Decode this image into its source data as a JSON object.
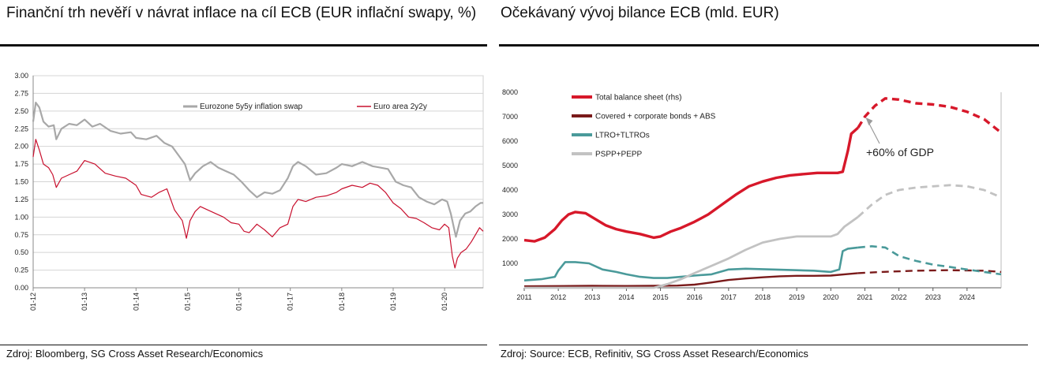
{
  "left": {
    "title": "Finanční trh nevěří v návrat inflace na cíl ECB (EUR inflační swapy, %)",
    "source": "Zdroj: Bloomberg, SG Cross Asset Research/Economics"
  },
  "right": {
    "title": "Očekávaný vývoj bilance ECB (mld. EUR)",
    "source": "Zdroj: Source: ECB, Refinitiv, SG Cross Asset Research/Economics"
  },
  "chart_data": [
    {
      "type": "line",
      "title": "Finanční trh nevěří v návrat inflace na cíl ECB (EUR inflační swapy, %)",
      "x_ticks": [
        "01-12",
        "01-13",
        "01-14",
        "01-15",
        "01-16",
        "01-17",
        "01-18",
        "01-19",
        "01-20"
      ],
      "y_ticks": [
        "0.00",
        "0.25",
        "0.50",
        "0.75",
        "1.00",
        "1.25",
        "1.50",
        "1.75",
        "2.00",
        "2.25",
        "2.50",
        "2.75",
        "3.00"
      ],
      "ylim": [
        0,
        3
      ],
      "xlim": [
        2012.0,
        2020.75
      ],
      "grid": true,
      "legend": "top",
      "series": [
        {
          "name": "Eurozone 5y5y inflation swap",
          "color": "#a8a8a8",
          "x": [
            2012.0,
            2012.05,
            2012.12,
            2012.2,
            2012.3,
            2012.4,
            2012.45,
            2012.55,
            2012.7,
            2012.85,
            2013.0,
            2013.15,
            2013.3,
            2013.5,
            2013.7,
            2013.9,
            2014.0,
            2014.2,
            2014.4,
            2014.55,
            2014.7,
            2014.85,
            2014.95,
            2015.05,
            2015.15,
            2015.3,
            2015.45,
            2015.6,
            2015.75,
            2015.9,
            2016.05,
            2016.2,
            2016.35,
            2016.5,
            2016.65,
            2016.8,
            2016.95,
            2017.05,
            2017.15,
            2017.3,
            2017.5,
            2017.7,
            2017.9,
            2018.0,
            2018.2,
            2018.4,
            2018.6,
            2018.75,
            2018.9,
            2019.05,
            2019.2,
            2019.35,
            2019.5,
            2019.65,
            2019.8,
            2019.95,
            2020.05,
            2020.12,
            2020.18,
            2020.22,
            2020.3,
            2020.4,
            2020.5,
            2020.6,
            2020.7,
            2020.75
          ],
          "y": [
            2.35,
            2.62,
            2.55,
            2.35,
            2.28,
            2.3,
            2.1,
            2.25,
            2.32,
            2.3,
            2.38,
            2.28,
            2.32,
            2.22,
            2.18,
            2.2,
            2.12,
            2.1,
            2.15,
            2.05,
            2.0,
            1.85,
            1.75,
            1.52,
            1.62,
            1.72,
            1.78,
            1.7,
            1.65,
            1.6,
            1.5,
            1.38,
            1.28,
            1.35,
            1.33,
            1.38,
            1.55,
            1.72,
            1.78,
            1.72,
            1.6,
            1.62,
            1.7,
            1.75,
            1.72,
            1.78,
            1.72,
            1.7,
            1.68,
            1.5,
            1.45,
            1.42,
            1.28,
            1.22,
            1.18,
            1.25,
            1.22,
            1.05,
            0.85,
            0.72,
            0.95,
            1.05,
            1.08,
            1.15,
            1.2,
            1.2
          ]
        },
        {
          "name": "Euro area 2y2y",
          "color": "#c8102e",
          "x": [
            2012.0,
            2012.05,
            2012.12,
            2012.2,
            2012.3,
            2012.38,
            2012.45,
            2012.55,
            2012.7,
            2012.85,
            2013.0,
            2013.2,
            2013.4,
            2013.6,
            2013.8,
            2014.0,
            2014.1,
            2014.3,
            2014.45,
            2014.6,
            2014.75,
            2014.9,
            2014.98,
            2015.05,
            2015.15,
            2015.25,
            2015.4,
            2015.55,
            2015.7,
            2015.85,
            2016.0,
            2016.1,
            2016.2,
            2016.35,
            2016.5,
            2016.65,
            2016.8,
            2016.95,
            2017.05,
            2017.15,
            2017.3,
            2017.5,
            2017.7,
            2017.9,
            2018.0,
            2018.2,
            2018.4,
            2018.55,
            2018.7,
            2018.85,
            2019.0,
            2019.15,
            2019.3,
            2019.45,
            2019.6,
            2019.75,
            2019.9,
            2020.0,
            2020.08,
            2020.15,
            2020.2,
            2020.25,
            2020.32,
            2020.42,
            2020.52,
            2020.6,
            2020.68,
            2020.75
          ],
          "y": [
            1.85,
            2.1,
            1.95,
            1.75,
            1.7,
            1.6,
            1.42,
            1.55,
            1.6,
            1.65,
            1.8,
            1.75,
            1.62,
            1.58,
            1.55,
            1.45,
            1.32,
            1.28,
            1.35,
            1.4,
            1.1,
            0.95,
            0.7,
            0.95,
            1.08,
            1.15,
            1.1,
            1.05,
            1.0,
            0.92,
            0.9,
            0.8,
            0.78,
            0.9,
            0.82,
            0.72,
            0.85,
            0.9,
            1.15,
            1.25,
            1.22,
            1.28,
            1.3,
            1.35,
            1.4,
            1.45,
            1.42,
            1.48,
            1.45,
            1.35,
            1.2,
            1.12,
            1.0,
            0.98,
            0.92,
            0.85,
            0.82,
            0.9,
            0.85,
            0.45,
            0.28,
            0.42,
            0.5,
            0.55,
            0.65,
            0.75,
            0.85,
            0.8
          ]
        }
      ]
    },
    {
      "type": "line",
      "title": "Očekávaný vývoj bilance ECB (mld. EUR)",
      "x_ticks": [
        "2011",
        "2012",
        "2013",
        "2014",
        "2015",
        "2016",
        "2017",
        "2018",
        "2019",
        "2020",
        "2021",
        "2022",
        "2023",
        "2024"
      ],
      "y_ticks": [
        "1000",
        "2000",
        "3000",
        "4000",
        "5000",
        "6000",
        "7000",
        "8000"
      ],
      "ylim": [
        0,
        8000
      ],
      "xlim": [
        2011.0,
        2025.0
      ],
      "grid": false,
      "legend": "top-left",
      "forecast_from": 2020.8,
      "annotation": "+60% of GDP",
      "series": [
        {
          "name": "Total balance sheet (rhs)",
          "color": "#d7182a",
          "x": [
            2011.0,
            2011.3,
            2011.6,
            2011.9,
            2012.1,
            2012.3,
            2012.5,
            2012.8,
            2013.1,
            2013.4,
            2013.7,
            2014.0,
            2014.4,
            2014.8,
            2015.0,
            2015.3,
            2015.6,
            2016.0,
            2016.4,
            2016.8,
            2017.2,
            2017.6,
            2018.0,
            2018.4,
            2018.8,
            2019.2,
            2019.6,
            2020.0,
            2020.2,
            2020.35,
            2020.5,
            2020.6,
            2020.8,
            2021.0,
            2021.3,
            2021.6,
            2022.0,
            2022.5,
            2023.0,
            2023.5,
            2024.0,
            2024.5,
            2025.0
          ],
          "y": [
            1950,
            1900,
            2050,
            2400,
            2750,
            3000,
            3100,
            3050,
            2800,
            2550,
            2400,
            2300,
            2200,
            2050,
            2100,
            2300,
            2450,
            2700,
            3000,
            3400,
            3800,
            4150,
            4350,
            4500,
            4600,
            4650,
            4700,
            4700,
            4700,
            4750,
            5600,
            6300,
            6550,
            7000,
            7450,
            7750,
            7700,
            7550,
            7500,
            7400,
            7200,
            6900,
            6350
          ]
        },
        {
          "name": "Covered + corporate bonds + ABS",
          "color": "#7a1a1a",
          "x": [
            2011.0,
            2012.0,
            2013.0,
            2014.0,
            2014.8,
            2015.5,
            2016.0,
            2016.5,
            2017.0,
            2017.5,
            2018.0,
            2018.5,
            2019.0,
            2019.5,
            2020.0,
            2020.5,
            2020.8,
            2021.5,
            2022.5,
            2023.5,
            2024.5,
            2025.0
          ],
          "y": [
            60,
            70,
            80,
            75,
            80,
            90,
            130,
            220,
            320,
            380,
            430,
            470,
            490,
            490,
            500,
            560,
            600,
            650,
            700,
            720,
            700,
            650
          ]
        },
        {
          "name": "LTRO+TLTROs",
          "color": "#4a9a9a",
          "x": [
            2011.0,
            2011.5,
            2011.9,
            2012.0,
            2012.2,
            2012.5,
            2012.9,
            2013.3,
            2013.7,
            2014.0,
            2014.4,
            2014.8,
            2015.2,
            2015.6,
            2016.0,
            2016.5,
            2017.0,
            2017.5,
            2018.0,
            2018.5,
            2019.0,
            2019.5,
            2020.0,
            2020.25,
            2020.35,
            2020.5,
            2020.8,
            2021.2,
            2021.6,
            2022.0,
            2022.5,
            2023.0,
            2023.5,
            2024.0,
            2024.5,
            2025.0
          ],
          "y": [
            300,
            350,
            450,
            700,
            1050,
            1050,
            1000,
            750,
            650,
            550,
            450,
            400,
            400,
            450,
            500,
            550,
            750,
            780,
            760,
            740,
            720,
            700,
            650,
            750,
            1500,
            1600,
            1650,
            1700,
            1650,
            1300,
            1100,
            950,
            850,
            750,
            650,
            550
          ]
        },
        {
          "name": "PSPP+PEPP",
          "color": "#c2c2c2",
          "x": [
            2011.0,
            2014.8,
            2015.2,
            2015.6,
            2016.0,
            2016.5,
            2017.0,
            2017.5,
            2018.0,
            2018.5,
            2019.0,
            2019.5,
            2020.0,
            2020.2,
            2020.4,
            2020.6,
            2020.8,
            2021.2,
            2021.6,
            2022.0,
            2022.5,
            2023.0,
            2023.5,
            2024.0,
            2024.5,
            2025.0
          ],
          "y": [
            0,
            0,
            150,
            350,
            600,
            900,
            1200,
            1550,
            1850,
            2000,
            2100,
            2100,
            2100,
            2200,
            2500,
            2700,
            2900,
            3400,
            3800,
            4000,
            4100,
            4150,
            4200,
            4150,
            4000,
            3700
          ]
        }
      ]
    }
  ]
}
